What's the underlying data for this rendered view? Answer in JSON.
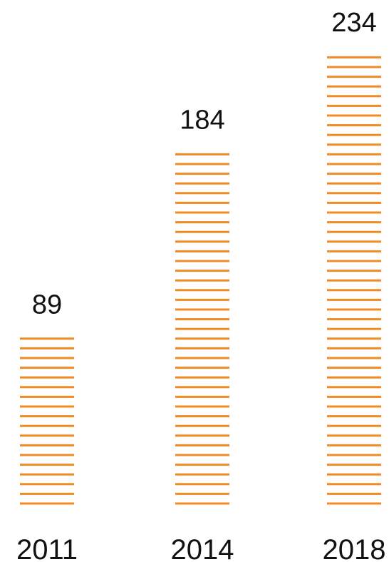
{
  "chart_data": {
    "type": "bar",
    "categories": [
      "2011",
      "2014",
      "2018"
    ],
    "values": [
      89,
      184,
      234
    ],
    "title": "",
    "xlabel": "",
    "ylabel": "",
    "ylim": [
      0,
      234
    ],
    "grid": false,
    "legend": "none",
    "bar_style": "horizontal-dashed-stripes",
    "bar_color": "#F08A24",
    "text_color": "#111111"
  }
}
